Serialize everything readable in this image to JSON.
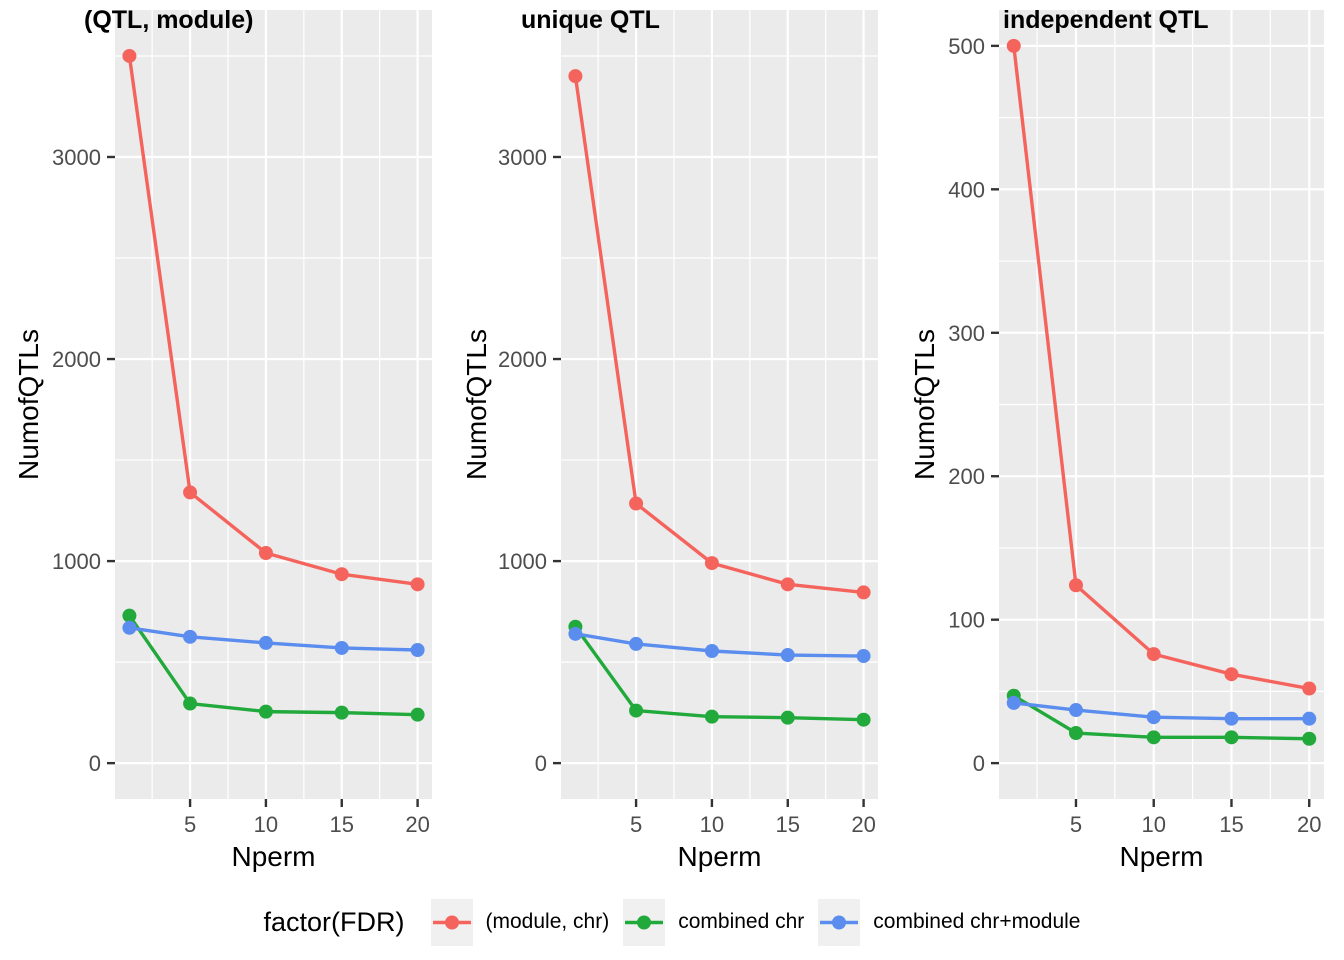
{
  "figure": {
    "legend": {
      "title": "factor(FDR)",
      "entries": [
        {
          "label": "(module, chr)",
          "color": "#F4645D"
        },
        {
          "label": "combined chr",
          "color": "#22A93C"
        },
        {
          "label": "combined chr+module",
          "color": "#5B8DEF"
        }
      ]
    },
    "colors": {
      "panel_background": "#EBEBEB",
      "gridline": "#FFFFFF",
      "tick_text": "#4D4D4D",
      "tick_mark": "#333333",
      "title_text": "#000000",
      "legend_key_background": "#F0F0F0"
    }
  },
  "chart_data": [
    {
      "type": "line",
      "title": "(QTL, module)",
      "xlabel": "Nperm",
      "ylabel": "NumofQTLs",
      "x": [
        1,
        5,
        10,
        15,
        20
      ],
      "x_ticks": [
        5,
        10,
        15,
        20
      ],
      "y_ticks": [
        0,
        1000,
        2000,
        3000
      ],
      "xlim": [
        1,
        20
      ],
      "ylim": [
        0,
        3550
      ],
      "grid": "major+minor",
      "legend_position": "bottom",
      "series": [
        {
          "name": "(module, chr)",
          "color": "#F4645D",
          "values": [
            3500,
            1340,
            1040,
            935,
            885
          ]
        },
        {
          "name": "combined chr",
          "color": "#22A93C",
          "values": [
            730,
            295,
            255,
            250,
            240
          ]
        },
        {
          "name": "combined chr+module",
          "color": "#5B8DEF",
          "values": [
            670,
            625,
            595,
            570,
            560
          ]
        }
      ]
    },
    {
      "type": "line",
      "title": "unique QTL",
      "xlabel": "Nperm",
      "ylabel": "NumofQTLs",
      "x": [
        1,
        5,
        10,
        15,
        20
      ],
      "x_ticks": [
        5,
        10,
        15,
        20
      ],
      "y_ticks": [
        0,
        1000,
        2000,
        3000
      ],
      "xlim": [
        1,
        20
      ],
      "ylim": [
        0,
        3550
      ],
      "grid": "major+minor",
      "legend_position": "bottom",
      "series": [
        {
          "name": "(module, chr)",
          "color": "#F4645D",
          "values": [
            3400,
            1285,
            990,
            885,
            845
          ]
        },
        {
          "name": "combined chr",
          "color": "#22A93C",
          "values": [
            675,
            260,
            230,
            225,
            215
          ]
        },
        {
          "name": "combined chr+module",
          "color": "#5B8DEF",
          "values": [
            640,
            590,
            555,
            535,
            530
          ]
        }
      ]
    },
    {
      "type": "line",
      "title": "independent QTL",
      "xlabel": "Nperm",
      "ylabel": "NumofQTLs",
      "x": [
        1,
        5,
        10,
        15,
        20
      ],
      "x_ticks": [
        5,
        10,
        15,
        20
      ],
      "y_ticks": [
        0,
        100,
        200,
        300,
        400,
        500
      ],
      "xlim": [
        1,
        20
      ],
      "ylim": [
        0,
        500
      ],
      "grid": "major+minor",
      "legend_position": "bottom",
      "series": [
        {
          "name": "(module, chr)",
          "color": "#F4645D",
          "values": [
            500,
            124,
            76,
            62,
            52
          ]
        },
        {
          "name": "combined chr",
          "color": "#22A93C",
          "values": [
            47,
            21,
            18,
            18,
            17
          ]
        },
        {
          "name": "combined chr+module",
          "color": "#5B8DEF",
          "values": [
            42,
            37,
            32,
            31,
            31
          ]
        }
      ]
    }
  ]
}
